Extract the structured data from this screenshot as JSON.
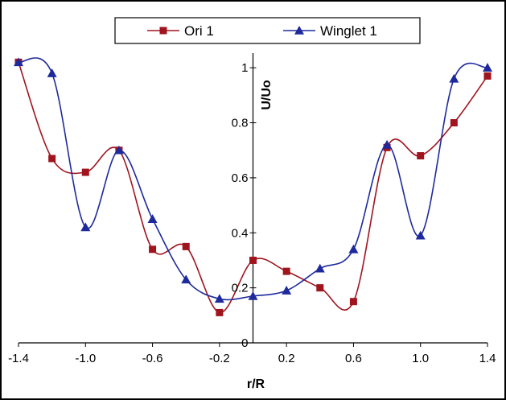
{
  "chart_data": {
    "type": "line",
    "title": "",
    "xlabel": "r/R",
    "ylabel": "U/Uo",
    "xlim": [
      -1.4,
      1.4
    ],
    "ylim": [
      0,
      1.1
    ],
    "x_ticks": [
      "-1.4",
      "-1.0",
      "-0.6",
      "-0.2",
      "0.2",
      "0.6",
      "1.0",
      "1.4"
    ],
    "y_ticks": [
      "0",
      "0.2",
      "0.4",
      "0.6",
      "0.8",
      "1"
    ],
    "grid": false,
    "legend_position": "top",
    "series": [
      {
        "name": "Ori 1",
        "color": "#A0141E",
        "marker": "square",
        "x": [
          -1.4,
          -1.2,
          -1.0,
          -0.8,
          -0.6,
          -0.4,
          -0.2,
          0.0,
          0.2,
          0.4,
          0.6,
          0.8,
          1.0,
          1.2,
          1.4
        ],
        "values": [
          1.02,
          0.67,
          0.62,
          0.7,
          0.34,
          0.35,
          0.11,
          0.3,
          0.26,
          0.2,
          0.15,
          0.71,
          0.68,
          0.8,
          0.97
        ]
      },
      {
        "name": "Winglet 1",
        "color": "#1E2A9C",
        "marker": "triangle",
        "x": [
          -1.4,
          -1.2,
          -1.0,
          -0.8,
          -0.6,
          -0.4,
          -0.2,
          0.0,
          0.2,
          0.4,
          0.6,
          0.8,
          1.0,
          1.2,
          1.4
        ],
        "values": [
          1.02,
          0.98,
          0.42,
          0.7,
          0.45,
          0.23,
          0.16,
          0.17,
          0.19,
          0.27,
          0.34,
          0.72,
          0.39,
          0.96,
          1.0
        ]
      }
    ]
  }
}
